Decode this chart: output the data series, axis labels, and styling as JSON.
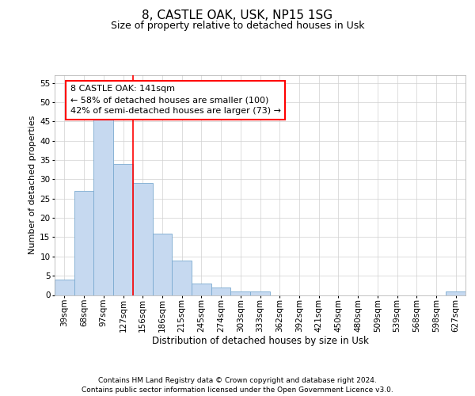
{
  "title": "8, CASTLE OAK, USK, NP15 1SG",
  "subtitle": "Size of property relative to detached houses in Usk",
  "xlabel": "Distribution of detached houses by size in Usk",
  "ylabel": "Number of detached properties",
  "categories": [
    "39sqm",
    "68sqm",
    "97sqm",
    "127sqm",
    "156sqm",
    "186sqm",
    "215sqm",
    "245sqm",
    "274sqm",
    "303sqm",
    "333sqm",
    "362sqm",
    "392sqm",
    "421sqm",
    "450sqm",
    "480sqm",
    "509sqm",
    "539sqm",
    "568sqm",
    "598sqm",
    "627sqm"
  ],
  "values": [
    4,
    27,
    46,
    34,
    29,
    16,
    9,
    3,
    2,
    1,
    1,
    0,
    0,
    0,
    0,
    0,
    0,
    0,
    0,
    0,
    1
  ],
  "bar_color": "#c6d9f0",
  "bar_edge_color": "#7aaad0",
  "vline_x": 3.5,
  "vline_color": "red",
  "ylim": [
    0,
    57
  ],
  "yticks": [
    0,
    5,
    10,
    15,
    20,
    25,
    30,
    35,
    40,
    45,
    50,
    55
  ],
  "annotation_text": "8 CASTLE OAK: 141sqm\n← 58% of detached houses are smaller (100)\n42% of semi-detached houses are larger (73) →",
  "annotation_box_color": "white",
  "annotation_box_edge_color": "red",
  "footer_line1": "Contains HM Land Registry data © Crown copyright and database right 2024.",
  "footer_line2": "Contains public sector information licensed under the Open Government Licence v3.0.",
  "title_fontsize": 11,
  "subtitle_fontsize": 9,
  "xlabel_fontsize": 8.5,
  "ylabel_fontsize": 8,
  "tick_fontsize": 7.5,
  "footer_fontsize": 6.5,
  "annotation_fontsize": 8,
  "background_color": "#ffffff",
  "grid_color": "#d0d0d0"
}
